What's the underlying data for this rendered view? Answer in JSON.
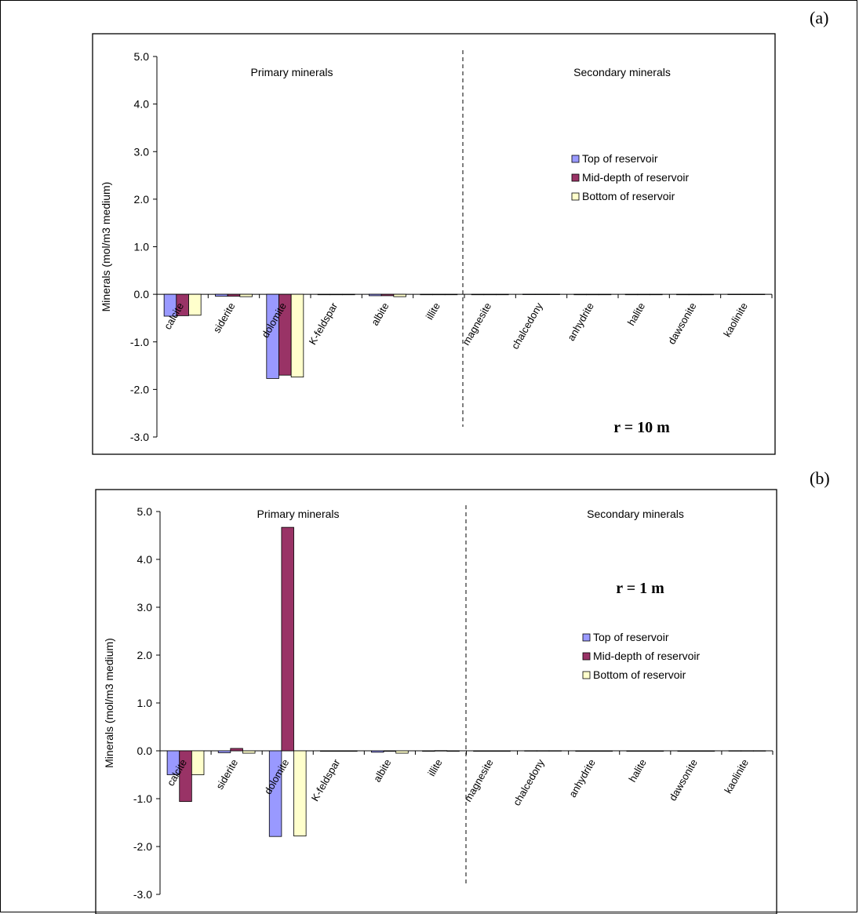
{
  "panel_labels": [
    "(a)",
    "(b)"
  ],
  "chart_data": [
    {
      "type": "bar",
      "panel": "(a)",
      "annotation": "r = 10 m",
      "region_labels": [
        "Primary minerals",
        "Secondary minerals"
      ],
      "ylabel": "Minerals (mol/m3 medium)",
      "ylim": [
        -3.0,
        5.0
      ],
      "yticks": [
        5.0,
        4.0,
        3.0,
        2.0,
        1.0,
        0.0,
        -1.0,
        -2.0,
        -3.0
      ],
      "ytick_labels": [
        "5.0",
        "4.0",
        "3.0",
        "2.0",
        "1.0",
        "0.0",
        "-1.0",
        "-2.0",
        "-3.0"
      ],
      "categories": [
        "calcite",
        "siderite",
        "dolomite",
        "K-feldspar",
        "albite",
        "illite",
        "magnesite",
        "chalcedony",
        "anhydrite",
        "halite",
        "dawsonite",
        "kaolinite"
      ],
      "legend_position": "right",
      "series": [
        {
          "name": "Top of reservoir",
          "color": "#9999ff",
          "values": [
            -0.46,
            -0.04,
            -1.77,
            -0.01,
            -0.03,
            -0.005,
            0,
            0.003,
            0,
            0,
            0,
            0.003
          ]
        },
        {
          "name": "Mid-depth of reservoir",
          "color": "#993366",
          "values": [
            -0.45,
            -0.04,
            -1.7,
            -0.01,
            -0.03,
            -0.005,
            0,
            0.003,
            0,
            0,
            0,
            0.003
          ]
        },
        {
          "name": "Bottom of reservoir",
          "color": "#ffffcc",
          "values": [
            -0.44,
            -0.05,
            -1.74,
            -0.01,
            -0.05,
            -0.005,
            0,
            0.003,
            0,
            0,
            0,
            0.003
          ]
        }
      ]
    },
    {
      "type": "bar",
      "panel": "(b)",
      "annotation": "r = 1 m",
      "region_labels": [
        "Primary minerals",
        "Secondary minerals"
      ],
      "ylabel": "Minerals (mol/m3 medium)",
      "ylim": [
        -3.0,
        5.0
      ],
      "yticks": [
        5.0,
        4.0,
        3.0,
        2.0,
        1.0,
        0.0,
        -1.0,
        -2.0,
        -3.0
      ],
      "ytick_labels": [
        "5.0",
        "4.0",
        "3.0",
        "2.0",
        "1.0",
        "0.0",
        "-1.0",
        "-2.0",
        "-3.0"
      ],
      "categories": [
        "calcite",
        "siderite",
        "dolomite",
        "K-feldspar",
        "albite",
        "illite",
        "magnesite",
        "chalcedony",
        "anhydrite",
        "halite",
        "dawsonite",
        "kaolinite"
      ],
      "legend_position": "right",
      "series": [
        {
          "name": "Top of reservoir",
          "color": "#9999ff",
          "values": [
            -0.5,
            -0.04,
            -1.79,
            -0.01,
            -0.03,
            -0.005,
            0,
            0.003,
            0,
            0,
            0,
            0.003
          ]
        },
        {
          "name": "Mid-depth of reservoir",
          "color": "#993366",
          "values": [
            -1.06,
            0.05,
            4.67,
            -0.01,
            -0.01,
            0.005,
            0,
            0.003,
            0,
            0,
            0,
            0.003
          ]
        },
        {
          "name": "Bottom of reservoir",
          "color": "#ffffcc",
          "values": [
            -0.5,
            -0.05,
            -1.78,
            -0.01,
            -0.05,
            -0.005,
            0,
            0.003,
            0,
            0,
            0,
            0.003
          ]
        }
      ]
    }
  ]
}
